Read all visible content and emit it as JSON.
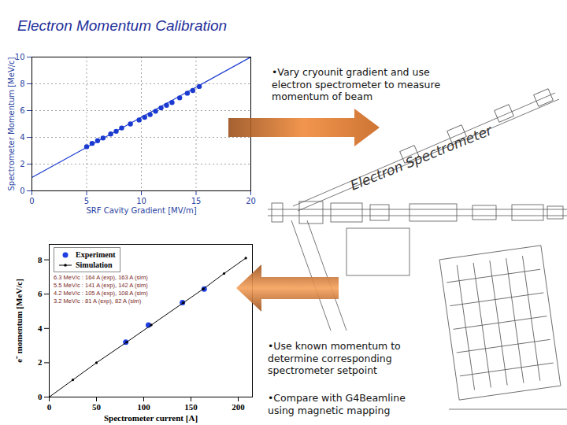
{
  "slide": {
    "title": "Electron Momentum Calibration",
    "bullets": [
      "•Vary cryounit gradient and use electron spectrometer to measure momentum of beam",
      "•Use known momentum to determine corresponding spectrometer setpoint",
      "•Compare with G4Beamline using magnetic mapping"
    ],
    "diagram_label": "Electron Spectrometer"
  },
  "chart_data": [
    {
      "type": "scatter",
      "x_label": "SRF Cavity Gradient [MV/m]",
      "y_label": "Spectrometer Momentum [MeV/c]",
      "xlim": [
        0,
        20
      ],
      "ylim": [
        0,
        10
      ],
      "xticks": [
        0,
        5,
        10,
        15,
        20
      ],
      "yticks": [
        0,
        2,
        4,
        6,
        8,
        10
      ],
      "grid": true,
      "series": [
        {
          "type": "scatter",
          "color": "#1a3ad0",
          "marker": "circle",
          "x": [
            5,
            5.5,
            6,
            6.5,
            7.2,
            7.7,
            8.2,
            9,
            9.8,
            10.3,
            10.8,
            11.3,
            11.8,
            12.3,
            12.8,
            13.5,
            14.2,
            14.7,
            15.3
          ],
          "values": [
            3.3,
            3.55,
            3.75,
            3.95,
            4.25,
            4.45,
            4.7,
            5.0,
            5.3,
            5.5,
            5.7,
            5.95,
            6.2,
            6.4,
            6.6,
            6.95,
            7.3,
            7.5,
            7.8
          ]
        },
        {
          "type": "line",
          "color": "#1a3ad0",
          "x": [
            0,
            20
          ],
          "values": [
            1.0,
            10.0
          ]
        }
      ]
    },
    {
      "type": "line",
      "x_label": "Spectrometer current [A]",
      "y_label": "e⁻ momentum [MeV/c]",
      "xlim": [
        0,
        215
      ],
      "ylim": [
        0,
        8.9
      ],
      "xticks": [
        0,
        50,
        100,
        150,
        200
      ],
      "yticks": [
        0,
        2,
        4,
        6,
        8
      ],
      "grid": false,
      "legend": "top-left",
      "series": [
        {
          "name": "Experiment",
          "type": "scatter",
          "color": "#1f3fe0",
          "marker": "circle",
          "x": [
            81,
            105,
            141,
            164
          ],
          "values": [
            3.2,
            4.2,
            5.5,
            6.3
          ]
        },
        {
          "name": "Simulation",
          "type": "line",
          "color": "#000000",
          "marker": "circle",
          "x": [
            0,
            25,
            50,
            82,
            108,
            142,
            163,
            185,
            208
          ],
          "values": [
            0,
            1.0,
            2.0,
            3.2,
            4.2,
            5.5,
            6.3,
            7.2,
            8.1
          ]
        }
      ],
      "annotations": [
        "6.3 MeV/c : 164 A (exp), 163 A (sim)",
        "5.5 MeV/c : 141 A (exp), 142 A (sim)",
        "4.2 MeV/c : 105 A (exp), 108 A (sim)",
        "3.2 MeV/c : 81 A (exp), 82 A (sim)"
      ]
    }
  ]
}
